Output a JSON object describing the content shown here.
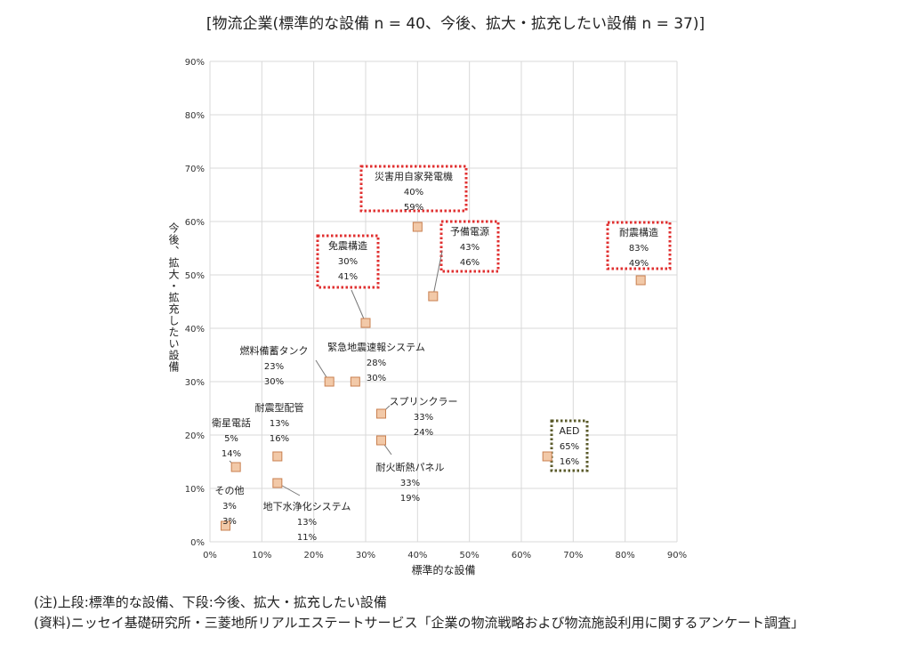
{
  "chart_data": {
    "type": "scatter",
    "title": "[物流企業(標準的な設備 n = 40、今後、拡大・拡充したい設備 n = 37)]",
    "xlabel": "標準的な設備",
    "ylabel": "今後、拡大・拡充したい設備",
    "xlim": [
      0,
      90
    ],
    "ylim": [
      0,
      90
    ],
    "x_ticks": [
      "0%",
      "10%",
      "20%",
      "30%",
      "40%",
      "50%",
      "60%",
      "70%",
      "80%",
      "90%"
    ],
    "y_ticks": [
      "0%",
      "10%",
      "20%",
      "30%",
      "40%",
      "50%",
      "60%",
      "70%",
      "80%",
      "90%"
    ],
    "grid": true,
    "points": [
      {
        "name": "災害用自家発電機",
        "x": 40,
        "y": 59,
        "x_label": "40%",
        "y_label": "59%",
        "highlight": "red"
      },
      {
        "name": "予備電源",
        "x": 43,
        "y": 46,
        "x_label": "43%",
        "y_label": "46%",
        "highlight": "red"
      },
      {
        "name": "耐震構造",
        "x": 83,
        "y": 49,
        "x_label": "83%",
        "y_label": "49%",
        "highlight": "red"
      },
      {
        "name": "免震構造",
        "x": 30,
        "y": 41,
        "x_label": "30%",
        "y_label": "41%",
        "highlight": "red"
      },
      {
        "name": "燃料備蓄タンク",
        "x": 23,
        "y": 30,
        "x_label": "23%",
        "y_label": "30%"
      },
      {
        "name": "緊急地震速報システム",
        "x": 28,
        "y": 30,
        "x_label": "28%",
        "y_label": "30%"
      },
      {
        "name": "スプリンクラー",
        "x": 33,
        "y": 24,
        "x_label": "33%",
        "y_label": "24%"
      },
      {
        "name": "耐火断熱パネル",
        "x": 33,
        "y": 19,
        "x_label": "33%",
        "y_label": "19%"
      },
      {
        "name": "耐震型配管",
        "x": 13,
        "y": 16,
        "x_label": "13%",
        "y_label": "16%"
      },
      {
        "name": "衛星電話",
        "x": 5,
        "y": 14,
        "x_label": "5%",
        "y_label": "14%"
      },
      {
        "name": "地下水浄化システム",
        "x": 13,
        "y": 11,
        "x_label": "13%",
        "y_label": "11%"
      },
      {
        "name": "その他",
        "x": 3,
        "y": 3,
        "x_label": "3%",
        "y_label": "3%"
      },
      {
        "name": "AED",
        "x": 65,
        "y": 16,
        "x_label": "65%",
        "y_label": "16%",
        "highlight": "olive"
      }
    ],
    "colors": {
      "marker_fill": "#f2c9a8",
      "marker_stroke": "#c98050",
      "red_box": "#e03030",
      "olive_box": "#5a5a2a",
      "grid": "#d9d9d9"
    }
  },
  "notes": [
    "(注)上段:標準的な設備、下段:今後、拡大・拡充したい設備",
    "(資料)ニッセイ基礎研究所・三菱地所リアルエステートサービス「企業の物流戦略および物流施設利用に関するアンケート調査」"
  ]
}
